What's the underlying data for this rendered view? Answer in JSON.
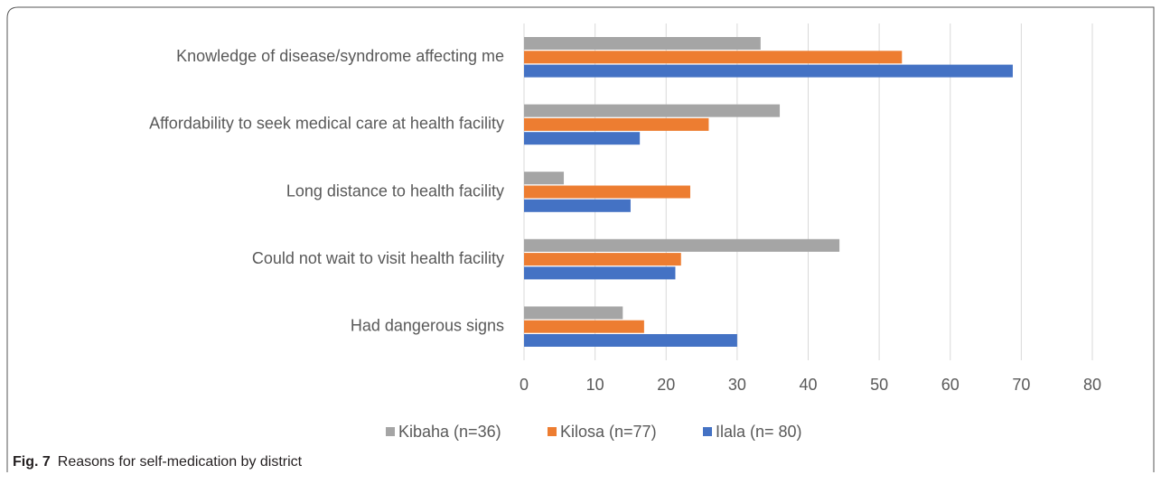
{
  "chart_data": {
    "type": "hbar",
    "categories": [
      "Knowledge of disease/syndrome affecting me",
      "Affordability to seek medical care at health facility",
      "Long distance to health facility",
      "Could not wait to visit health facility",
      "Had dangerous signs"
    ],
    "series": [
      {
        "name": "Kibaha (n=36)",
        "color": "#a5a5a5",
        "values": [
          33.3,
          36.0,
          5.6,
          44.4,
          13.9
        ]
      },
      {
        "name": "Kilosa (n=77)",
        "color": "#ed7d31",
        "values": [
          53.2,
          26.0,
          23.4,
          22.1,
          16.9
        ]
      },
      {
        "name": "Ilala (n= 80)",
        "color": "#4472c4",
        "values": [
          68.8,
          16.3,
          15.0,
          21.3,
          30.0
        ]
      }
    ],
    "xlim": [
      0,
      80
    ],
    "xticks": [
      0,
      10,
      20,
      30,
      40,
      50,
      60,
      70,
      80
    ],
    "grid": true,
    "legend": "bottom",
    "caption": {
      "label": "Fig. 7",
      "text": "Reasons for self-medication by district"
    }
  }
}
